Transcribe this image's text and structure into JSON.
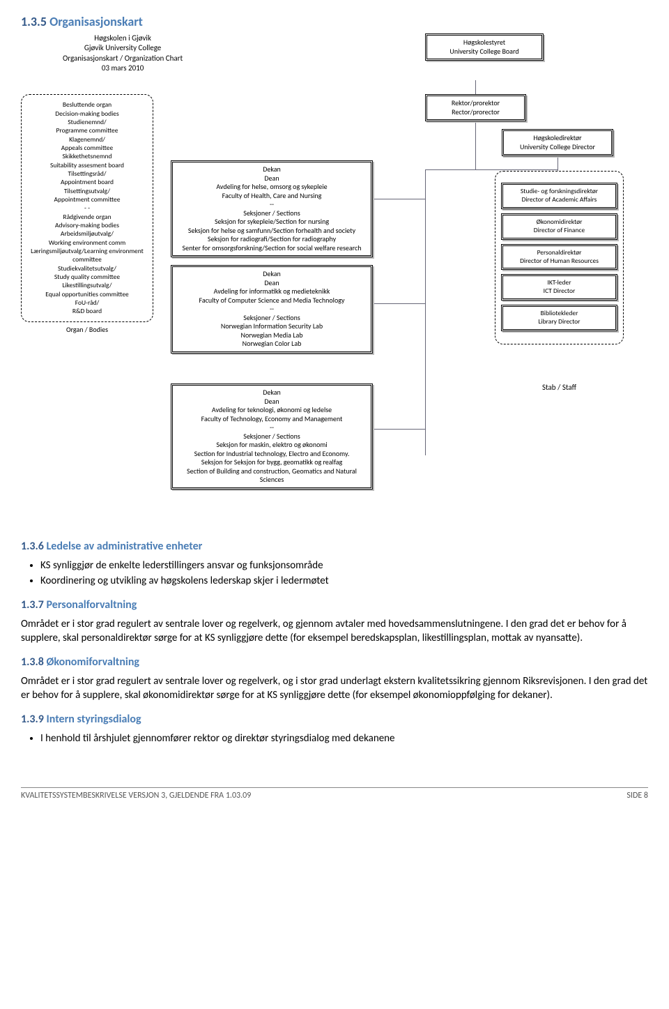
{
  "heading": {
    "num": "1.3.5",
    "title": "Organisasjonskart"
  },
  "org_title": {
    "l1": "Høgskolen i Gjøvik",
    "l2": "Gjøvik University College",
    "l3": "Organisasjonskart / Organization Chart",
    "l4": "03 mars 2010"
  },
  "top_box": {
    "l1": "Høgskolestyret",
    "l2": "University College Board"
  },
  "rector": {
    "l1": "Rektor/prorektor",
    "l2": "Rector/prorector"
  },
  "left_bodies": {
    "lines": [
      "Besluttende organ",
      "Decision-making bodies",
      "Studienemnd/",
      "Programme committee",
      "Klagenemnd/",
      "Appeals committee",
      "Skikkethetsnemnd",
      "Suitability assesment board",
      "Tilsettingsråd/",
      "Appointment board",
      "Tilsettingsutvalg/",
      "Appointment committee",
      "- -",
      "Rådgivende organ",
      "Advisory-making bodies",
      "Arbeidsmiljøutvalg/",
      "Working environment comm",
      "Læringsmiljøutvalg/Learning environment",
      "committee",
      "Studiekvalitetsutvalg/",
      "Study quality committee",
      "Likestillingsutvalg/",
      "Equal opportunities committee",
      "FoU-råd/",
      "R&D board"
    ],
    "caption": "Organ / Bodies"
  },
  "faculty1": [
    "Dekan",
    "Dean",
    "Avdeling for helse, omsorg og sykepleie",
    "Faculty of Health, Care and Nursing",
    "--",
    "Seksjoner / Sections",
    "Seksjon for sykepleie/Section for nursing",
    "Seksjon for helse og samfunn/Section forhealth and society",
    "Seksjon for radiografi/Section for radiography",
    "Senter for omsorgsforskning/Section for social welfare research"
  ],
  "faculty2": [
    "Dekan",
    "Dean",
    "Avdeling for informatikk og medieteknikk",
    "Faculty of Computer Science and Media Technology",
    "--",
    "Seksjoner / Sections",
    "Norwegian Information Security Lab",
    "Norwegian Media Lab",
    "Norwegian Color Lab"
  ],
  "faculty3": [
    "Dekan",
    "Dean",
    "Avdeling for teknologi, økonomi og ledelse",
    "Faculty of Technology, Economy and Management",
    "--",
    "Seksjoner / Sections",
    "Seksjon for maskin, elektro og økonomi",
    "Section for Industrial technology, Electro and Economy.",
    "Seksjon for Seksjon for bygg, geomatikk og realfag",
    "Section of Building and construction, Geomatics and Natural",
    "Sciences"
  ],
  "director": {
    "l1": "Høgskoledirektør",
    "l2": "University College Director"
  },
  "stab_items": [
    {
      "l1": "Studie- og forskningsdirektør",
      "l2": "Director of Academic Affairs"
    },
    {
      "l1": "Økonomidirektør",
      "l2": "Director of Finance"
    },
    {
      "l1": "Personaldirektør",
      "l2": "Director of Human Resources"
    },
    {
      "l1": "IKT-leder",
      "l2": "ICT Director"
    },
    {
      "l1": "Bibliotekleder",
      "l2": "Library Director"
    }
  ],
  "stab_caption": "Stab / Staff",
  "sections": {
    "s6": {
      "num": "1.3.6",
      "title": "Ledelse av administrative enheter",
      "bullets": [
        "KS synliggjør de enkelte lederstillingers ansvar og funksjonsområde",
        "Koordinering og utvikling av høgskolens lederskap skjer i ledermøtet"
      ]
    },
    "s7": {
      "num": "1.3.7",
      "title": "Personalforvaltning",
      "para": "Området er i stor grad regulert av sentrale lover og regelverk, og gjennom avtaler med hovedsammenslutningene. I den grad det er behov for å supplere, skal personaldirektør sørge for at KS synliggjøre dette (for eksempel beredskapsplan, likestillingsplan, mottak av nyansatte)."
    },
    "s8": {
      "num": "1.3.8",
      "title": "Økonomiforvaltning",
      "para": "Området er i stor grad regulert av sentrale lover og regelverk, og i stor grad underlagt ekstern kvalitetssikring gjennom Riksrevisjonen. I den grad det er behov for å supplere, skal økonomidirektør sørge for at KS synliggjøre dette (for eksempel økonomioppfølging for dekaner)."
    },
    "s9": {
      "num": "1.3.9",
      "title": "Intern styringsdialog",
      "bullets": [
        "I henhold til årshjulet gjennomfører rektor og direktør styringsdialog med dekanene"
      ]
    }
  },
  "footer": {
    "left": "KVALITETSSYSTEMBESKRIVELSE VERSJON 3, GJELDENDE FRA 1.03.09",
    "right": "SIDE 8"
  },
  "colors": {
    "heading_num": "#355a8a",
    "heading_title": "#4a7db5",
    "connector": "#667788"
  }
}
